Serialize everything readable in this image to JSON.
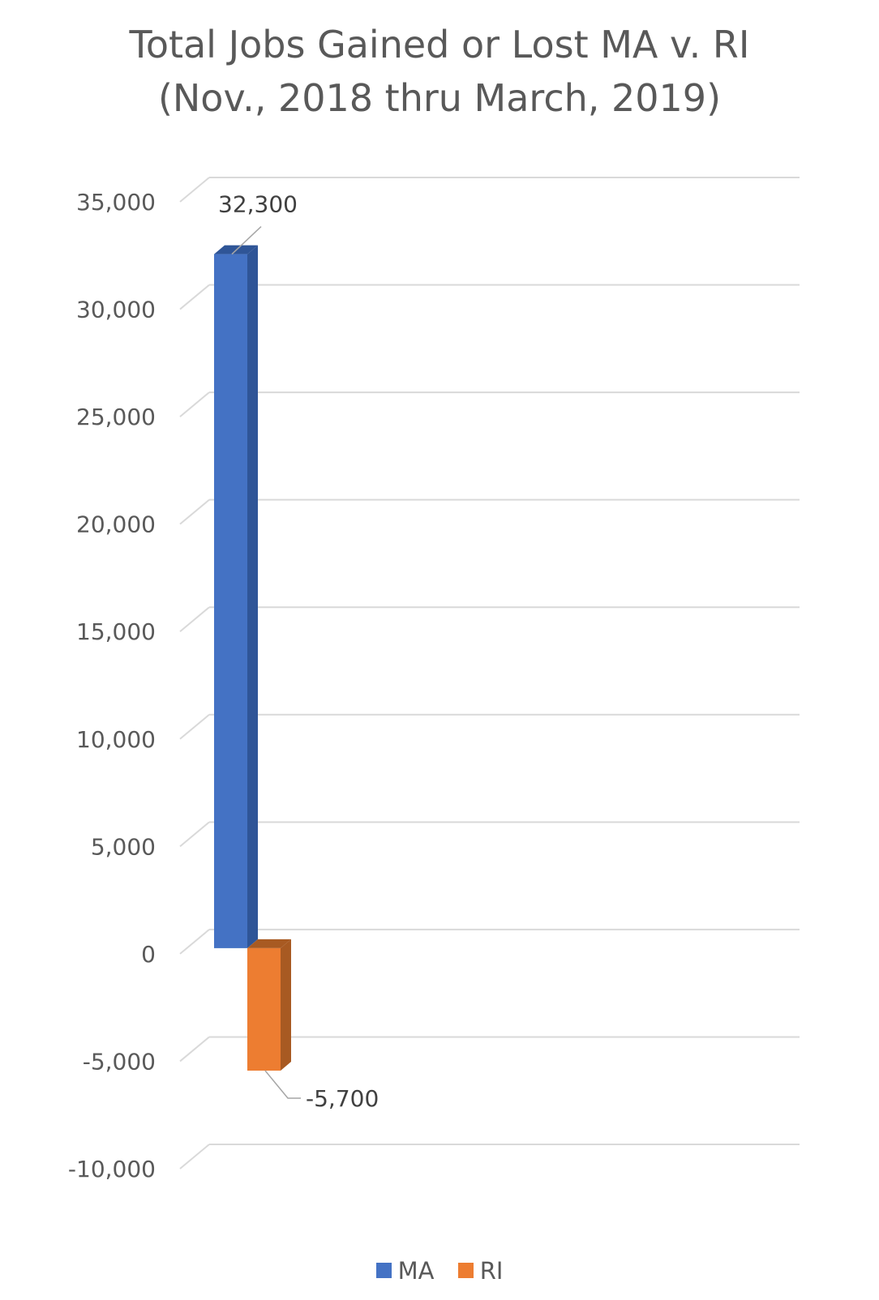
{
  "chart_data": {
    "type": "bar",
    "title_lines": [
      "Total Jobs Gained or Lost MA v. RI",
      "(Nov., 2018 thru March, 2019)"
    ],
    "categories": [
      ""
    ],
    "series": [
      {
        "name": "MA",
        "values": [
          32300
        ],
        "color": "#4472C4",
        "side_color": "#2F5597",
        "label": "32,300"
      },
      {
        "name": "RI",
        "values": [
          -5700
        ],
        "color": "#ED7D31",
        "side_color": "#A85A22",
        "label": "-5,700"
      }
    ],
    "xlabel": "",
    "ylabel": "",
    "ylim": [
      -10000,
      35000
    ],
    "yticks": [
      35000,
      30000,
      25000,
      20000,
      15000,
      10000,
      5000,
      0,
      -5000,
      -10000
    ],
    "ytick_labels": [
      "35,000",
      "30,000",
      "25,000",
      "20,000",
      "15,000",
      "10,000",
      "5,000",
      "0",
      "-5,000",
      "-10,000"
    ],
    "grid": true,
    "legend_position": "bottom",
    "style": "3d-column"
  }
}
